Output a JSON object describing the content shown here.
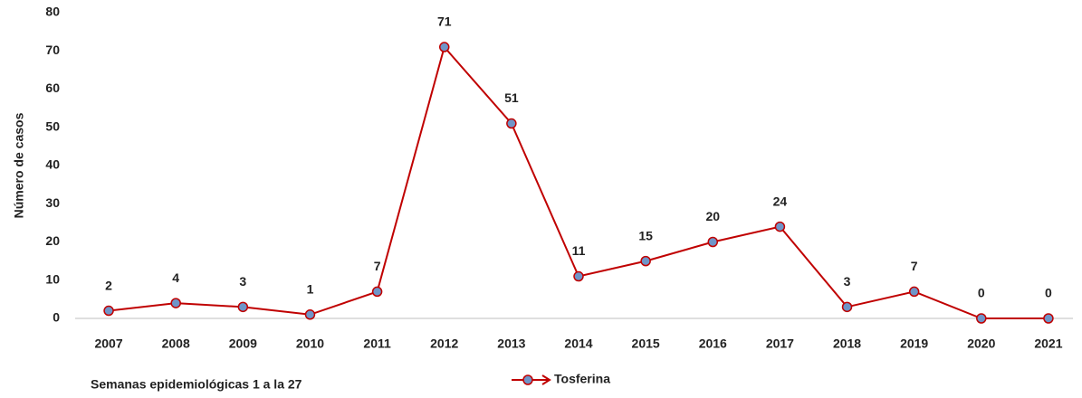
{
  "chart_data": {
    "type": "line",
    "categories": [
      "2007",
      "2008",
      "2009",
      "2010",
      "2011",
      "2012",
      "2013",
      "2014",
      "2015",
      "2016",
      "2017",
      "2018",
      "2019",
      "2020",
      "2021"
    ],
    "series": [
      {
        "name": "Tosferina",
        "color": "#c00000",
        "marker_color": "#6f95c8",
        "values": [
          2,
          4,
          3,
          1,
          7,
          71,
          51,
          11,
          15,
          20,
          24,
          3,
          7,
          0,
          0
        ]
      }
    ],
    "ylim": [
      0,
      80
    ],
    "yticks": [
      0,
      10,
      20,
      30,
      40,
      50,
      60,
      70,
      80
    ],
    "y_label": "Número de casos",
    "x_label": "Semanas epidemiológicas 1 a la 27",
    "grid": false,
    "legend": "bottom"
  }
}
